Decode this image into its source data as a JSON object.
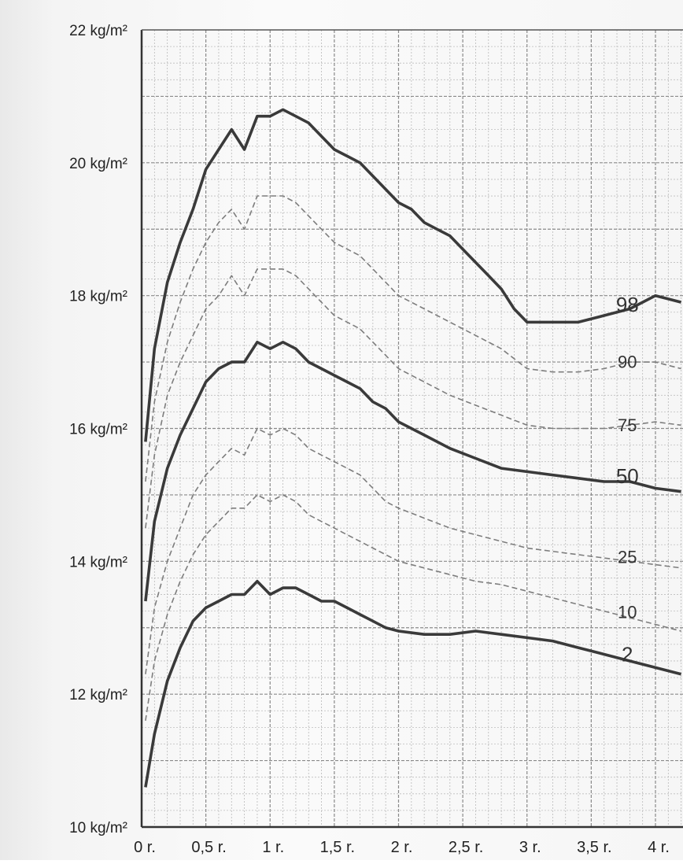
{
  "chart_data": {
    "type": "line",
    "title": "",
    "xlabel": "",
    "ylabel": "",
    "x_unit": "r.",
    "y_unit": "kg/m²",
    "xlim": [
      0,
      4.2
    ],
    "ylim": [
      10,
      22
    ],
    "grid": true,
    "y_ticks": [
      {
        "value": 10,
        "label": "10 kg/m²"
      },
      {
        "value": 12,
        "label": "12 kg/m²"
      },
      {
        "value": 14,
        "label": "14 kg/m²"
      },
      {
        "value": 16,
        "label": "16 kg/m²"
      },
      {
        "value": 18,
        "label": "18 kg/m²"
      },
      {
        "value": 20,
        "label": "20 kg/m²"
      },
      {
        "value": 22,
        "label": "22 kg/m²"
      }
    ],
    "x_ticks": [
      {
        "value": 0,
        "label": "0 r."
      },
      {
        "value": 0.5,
        "label": "0,5 r."
      },
      {
        "value": 1,
        "label": "1 r."
      },
      {
        "value": 1.5,
        "label": "1,5 r."
      },
      {
        "value": 2,
        "label": "2 r."
      },
      {
        "value": 2.5,
        "label": "2,5 r."
      },
      {
        "value": 3,
        "label": "3 r."
      },
      {
        "value": 3.5,
        "label": "3,5 r."
      },
      {
        "value": 4,
        "label": "4 r."
      }
    ],
    "series": [
      {
        "name": "98",
        "style": "bold",
        "x": [
          0.03,
          0.1,
          0.2,
          0.3,
          0.4,
          0.5,
          0.6,
          0.7,
          0.8,
          0.9,
          1.0,
          1.1,
          1.2,
          1.3,
          1.4,
          1.5,
          1.6,
          1.7,
          1.8,
          1.9,
          2.0,
          2.1,
          2.2,
          2.3,
          2.4,
          2.5,
          2.6,
          2.7,
          2.8,
          2.9,
          3.0,
          3.2,
          3.4,
          3.6,
          3.8,
          4.0,
          4.2
        ],
        "y": [
          15.8,
          17.2,
          18.2,
          18.8,
          19.3,
          19.9,
          20.2,
          20.5,
          20.2,
          20.7,
          20.7,
          20.8,
          20.7,
          20.6,
          20.4,
          20.2,
          20.1,
          20.0,
          19.8,
          19.6,
          19.4,
          19.3,
          19.1,
          19.0,
          18.9,
          18.7,
          18.5,
          18.3,
          18.1,
          17.8,
          17.6,
          17.6,
          17.6,
          17.7,
          17.8,
          18.0,
          17.9
        ]
      },
      {
        "name": "90",
        "style": "dashed",
        "x": [
          0.03,
          0.1,
          0.2,
          0.3,
          0.4,
          0.5,
          0.6,
          0.7,
          0.8,
          0.9,
          1.0,
          1.1,
          1.2,
          1.3,
          1.4,
          1.5,
          1.6,
          1.7,
          1.8,
          1.9,
          2.0,
          2.2,
          2.4,
          2.6,
          2.8,
          3.0,
          3.2,
          3.4,
          3.6,
          3.8,
          4.0,
          4.2
        ],
        "y": [
          15.2,
          16.4,
          17.3,
          17.9,
          18.4,
          18.8,
          19.1,
          19.3,
          19.0,
          19.5,
          19.5,
          19.5,
          19.4,
          19.2,
          19.0,
          18.8,
          18.7,
          18.6,
          18.4,
          18.2,
          18.0,
          17.8,
          17.6,
          17.4,
          17.2,
          16.9,
          16.85,
          16.85,
          16.9,
          17.0,
          17.0,
          16.9
        ]
      },
      {
        "name": "75",
        "style": "dashed",
        "x": [
          0.03,
          0.1,
          0.2,
          0.3,
          0.4,
          0.5,
          0.6,
          0.7,
          0.8,
          0.9,
          1.0,
          1.1,
          1.2,
          1.3,
          1.4,
          1.5,
          1.6,
          1.7,
          1.8,
          1.9,
          2.0,
          2.2,
          2.4,
          2.6,
          2.8,
          3.0,
          3.2,
          3.4,
          3.6,
          3.8,
          4.0,
          4.2
        ],
        "y": [
          14.5,
          15.6,
          16.5,
          17.0,
          17.4,
          17.8,
          18.0,
          18.3,
          18.0,
          18.4,
          18.4,
          18.4,
          18.3,
          18.1,
          17.9,
          17.7,
          17.6,
          17.5,
          17.3,
          17.1,
          16.9,
          16.7,
          16.5,
          16.35,
          16.2,
          16.05,
          16.0,
          16.0,
          16.0,
          16.05,
          16.1,
          16.05
        ]
      },
      {
        "name": "50",
        "style": "bold",
        "x": [
          0.03,
          0.1,
          0.2,
          0.3,
          0.4,
          0.5,
          0.6,
          0.7,
          0.8,
          0.9,
          1.0,
          1.1,
          1.2,
          1.3,
          1.4,
          1.5,
          1.6,
          1.7,
          1.8,
          1.9,
          2.0,
          2.2,
          2.4,
          2.6,
          2.8,
          3.0,
          3.2,
          3.4,
          3.6,
          3.8,
          4.0,
          4.2
        ],
        "y": [
          13.4,
          14.6,
          15.4,
          15.9,
          16.3,
          16.7,
          16.9,
          17.0,
          17.0,
          17.3,
          17.2,
          17.3,
          17.2,
          17.0,
          16.9,
          16.8,
          16.7,
          16.6,
          16.4,
          16.3,
          16.1,
          15.9,
          15.7,
          15.55,
          15.4,
          15.35,
          15.3,
          15.25,
          15.2,
          15.2,
          15.1,
          15.05
        ]
      },
      {
        "name": "25",
        "style": "dashed",
        "x": [
          0.03,
          0.1,
          0.2,
          0.3,
          0.4,
          0.5,
          0.6,
          0.7,
          0.8,
          0.9,
          1.0,
          1.1,
          1.2,
          1.3,
          1.4,
          1.5,
          1.6,
          1.7,
          1.8,
          1.9,
          2.0,
          2.2,
          2.4,
          2.6,
          2.8,
          3.0,
          3.2,
          3.4,
          3.6,
          3.8,
          4.0,
          4.2
        ],
        "y": [
          12.3,
          13.3,
          14.0,
          14.5,
          15.0,
          15.3,
          15.5,
          15.7,
          15.6,
          16.0,
          15.9,
          16.0,
          15.9,
          15.7,
          15.6,
          15.5,
          15.4,
          15.3,
          15.1,
          14.9,
          14.8,
          14.65,
          14.5,
          14.4,
          14.3,
          14.2,
          14.15,
          14.1,
          14.05,
          14.0,
          13.95,
          13.9
        ]
      },
      {
        "name": "10",
        "style": "dashed",
        "x": [
          0.03,
          0.1,
          0.2,
          0.3,
          0.4,
          0.5,
          0.6,
          0.7,
          0.8,
          0.9,
          1.0,
          1.1,
          1.2,
          1.3,
          1.4,
          1.5,
          1.6,
          1.7,
          1.8,
          1.9,
          2.0,
          2.2,
          2.4,
          2.6,
          2.8,
          3.0,
          3.2,
          3.4,
          3.6,
          3.8,
          4.0,
          4.2
        ],
        "y": [
          11.6,
          12.5,
          13.2,
          13.7,
          14.1,
          14.4,
          14.6,
          14.8,
          14.8,
          15.0,
          14.9,
          15.0,
          14.9,
          14.7,
          14.6,
          14.5,
          14.4,
          14.3,
          14.2,
          14.1,
          14.0,
          13.9,
          13.8,
          13.7,
          13.65,
          13.55,
          13.45,
          13.35,
          13.25,
          13.15,
          13.05,
          12.95
        ]
      },
      {
        "name": "2",
        "style": "bold",
        "x": [
          0.03,
          0.1,
          0.2,
          0.3,
          0.4,
          0.5,
          0.6,
          0.7,
          0.8,
          0.9,
          1.0,
          1.1,
          1.2,
          1.3,
          1.4,
          1.5,
          1.6,
          1.7,
          1.8,
          1.9,
          2.0,
          2.2,
          2.4,
          2.6,
          2.8,
          3.0,
          3.2,
          3.4,
          3.6,
          3.8,
          4.0,
          4.2
        ],
        "y": [
          10.6,
          11.4,
          12.2,
          12.7,
          13.1,
          13.3,
          13.4,
          13.5,
          13.5,
          13.7,
          13.5,
          13.6,
          13.6,
          13.5,
          13.4,
          13.4,
          13.3,
          13.2,
          13.1,
          13.0,
          12.95,
          12.9,
          12.9,
          12.95,
          12.9,
          12.85,
          12.8,
          12.7,
          12.6,
          12.5,
          12.4,
          12.3
        ]
      }
    ]
  }
}
